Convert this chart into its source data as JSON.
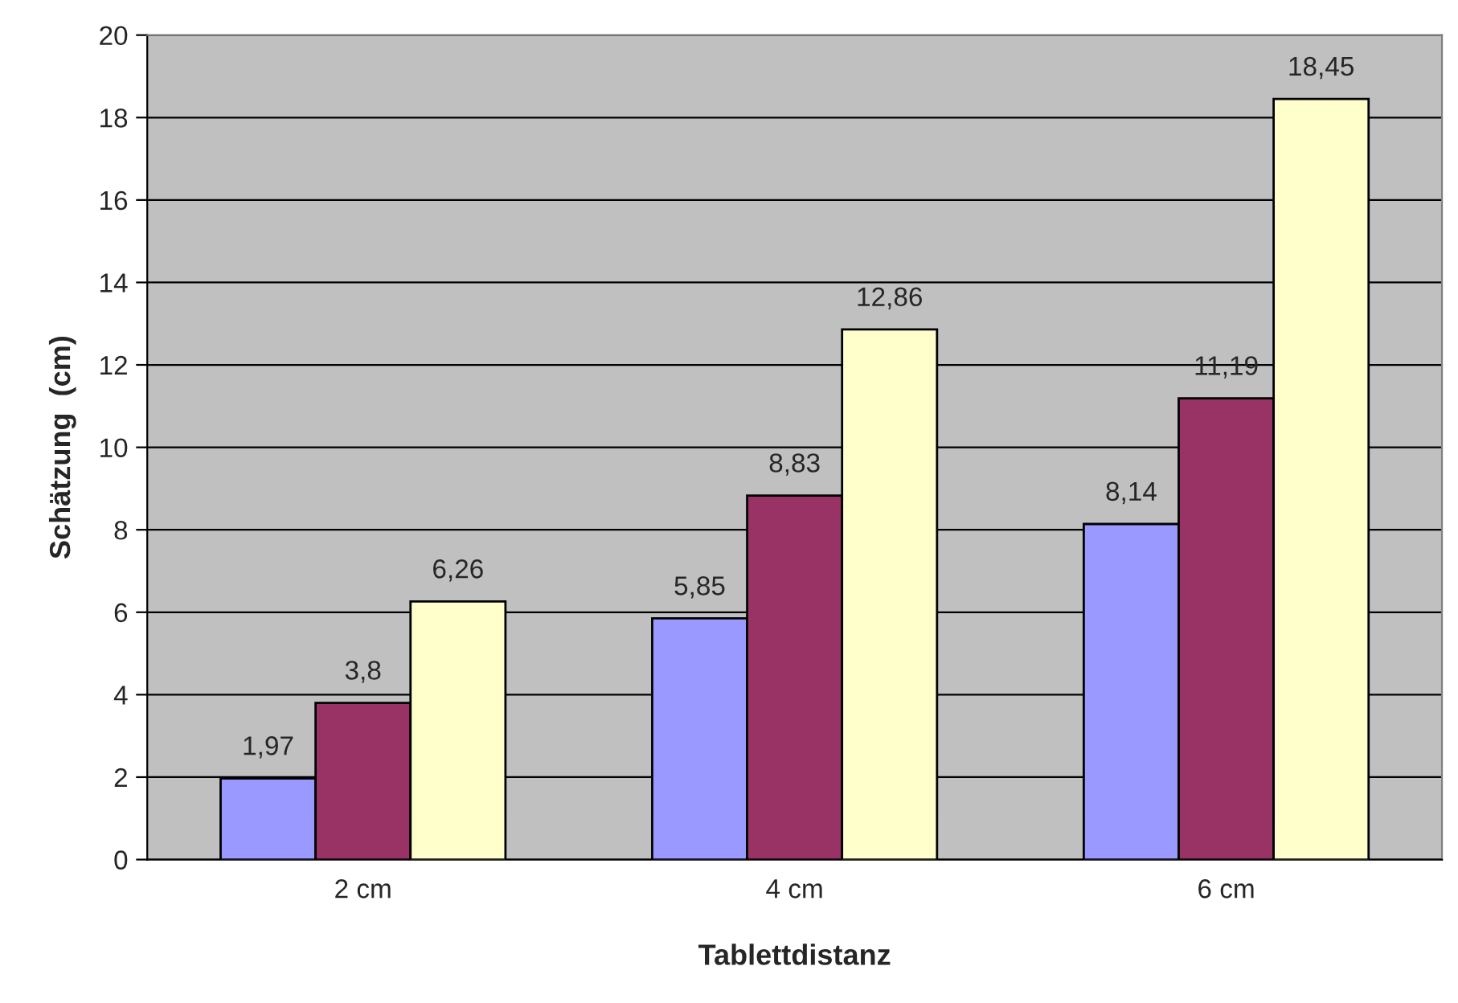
{
  "chart_data": {
    "type": "bar",
    "xlabel": "Tablettdistanz",
    "ylabel": "Schätzung  (cm)",
    "categories": [
      "2 cm",
      "4 cm",
      "6 cm"
    ],
    "series": [
      {
        "color": "#9999ff",
        "values": [
          1.97,
          5.85,
          8.14
        ],
        "value_labels": [
          "1,97",
          "5,85",
          "8,14"
        ]
      },
      {
        "color": "#993366",
        "values": [
          3.8,
          8.83,
          11.19
        ],
        "value_labels": [
          "3,8",
          "8,83",
          "11,19"
        ]
      },
      {
        "color": "#ffffcc",
        "values": [
          6.26,
          12.86,
          18.45
        ],
        "value_labels": [
          "6,26",
          "12,86",
          "18,45"
        ]
      }
    ],
    "ylim": [
      0,
      20
    ],
    "yticks": [
      0,
      2,
      4,
      6,
      8,
      10,
      12,
      14,
      16,
      18,
      20
    ],
    "grid": "y",
    "legend": false
  }
}
